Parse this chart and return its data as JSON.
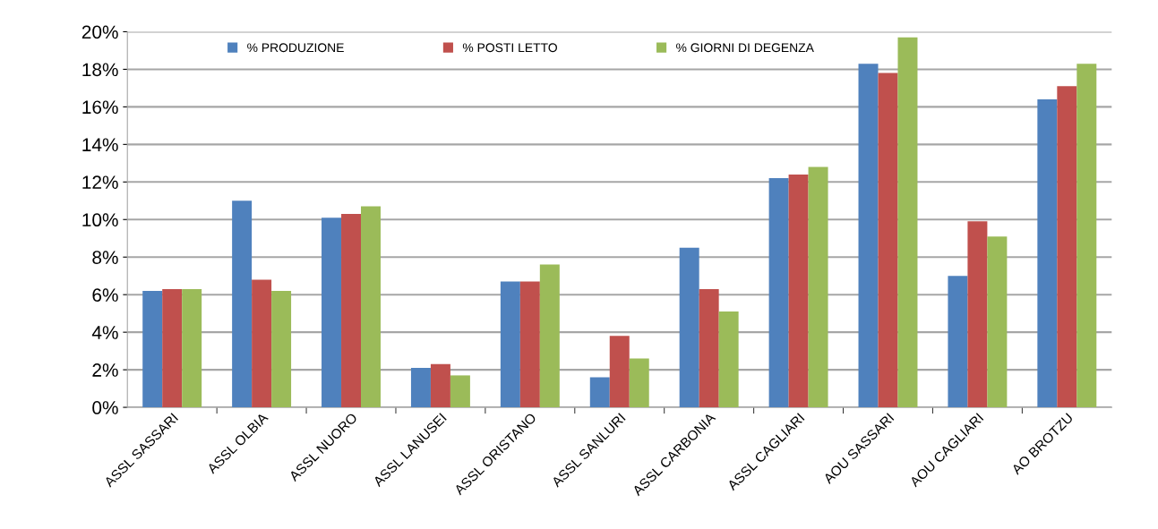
{
  "chart_data": {
    "type": "bar",
    "categories": [
      "ASSL SASSARI",
      "ASSL OLBIA",
      "ASSL NUORO",
      "ASSL LANUSEI",
      "ASSL ORISTANO",
      "ASSL SANLURI",
      "ASSL CARBONIA",
      "ASSL CAGLIARI",
      "AOU SASSARI",
      "AOU CAGLIARI",
      "AO BROTZU"
    ],
    "series": [
      {
        "name": "% PRODUZIONE",
        "color": "#4f81bd",
        "values": [
          6.2,
          11.0,
          10.1,
          2.1,
          6.7,
          1.6,
          8.5,
          12.2,
          18.3,
          7.0,
          16.4
        ]
      },
      {
        "name": "% POSTI LETTO",
        "color": "#c0504d",
        "values": [
          6.3,
          6.8,
          10.3,
          2.3,
          6.7,
          3.8,
          6.3,
          12.4,
          17.8,
          9.9,
          17.1
        ]
      },
      {
        "name": "% GIORNI DI DEGENZA",
        "color": "#9bbb59",
        "values": [
          6.3,
          6.2,
          10.7,
          1.7,
          7.6,
          2.6,
          5.1,
          12.8,
          19.7,
          9.1,
          18.3
        ]
      }
    ],
    "ylim": [
      0,
      20
    ],
    "yticks": [
      {
        "value": 0,
        "label": "0%"
      },
      {
        "value": 2,
        "label": "2%"
      },
      {
        "value": 4,
        "label": "4%"
      },
      {
        "value": 6,
        "label": "6%"
      },
      {
        "value": 8,
        "label": "8%"
      },
      {
        "value": 10,
        "label": "10%"
      },
      {
        "value": 12,
        "label": "12%"
      },
      {
        "value": 14,
        "label": "14%"
      },
      {
        "value": 16,
        "label": "16%"
      },
      {
        "value": 18,
        "label": "18%"
      },
      {
        "value": 20,
        "label": "20%"
      }
    ],
    "grid": "y",
    "legend": "top"
  }
}
